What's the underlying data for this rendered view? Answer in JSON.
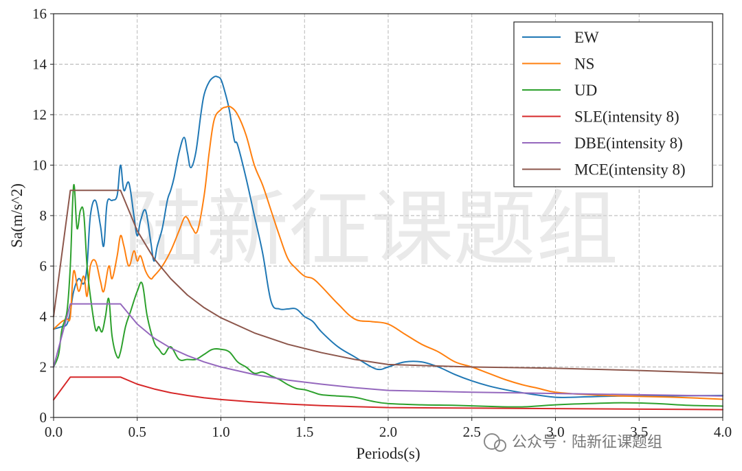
{
  "chart_data": {
    "type": "line",
    "xlabel": "Periods(s)",
    "ylabel": "Sa(m/s^2)",
    "xlim": [
      0,
      4.0
    ],
    "ylim": [
      0,
      16
    ],
    "xticks": [
      "0.0",
      "0.5",
      "1.0",
      "1.5",
      "2.0",
      "2.5",
      "3.0",
      "3.5",
      "4.0"
    ],
    "yticks": [
      "0",
      "2",
      "4",
      "6",
      "8",
      "10",
      "12",
      "14",
      "16"
    ],
    "grid": true,
    "legend_position": "top-right",
    "series": [
      {
        "name": "EW",
        "color": "#1f77b4",
        "x": [
          0.0,
          0.05,
          0.08,
          0.1,
          0.12,
          0.15,
          0.18,
          0.2,
          0.22,
          0.25,
          0.28,
          0.3,
          0.32,
          0.35,
          0.38,
          0.4,
          0.42,
          0.45,
          0.48,
          0.5,
          0.52,
          0.55,
          0.58,
          0.6,
          0.62,
          0.65,
          0.68,
          0.7,
          0.72,
          0.75,
          0.78,
          0.8,
          0.82,
          0.85,
          0.88,
          0.9,
          0.93,
          0.96,
          0.98,
          1.0,
          1.02,
          1.05,
          1.08,
          1.1,
          1.15,
          1.2,
          1.25,
          1.3,
          1.35,
          1.4,
          1.45,
          1.5,
          1.55,
          1.6,
          1.7,
          1.8,
          1.9,
          1.95,
          2.0,
          2.1,
          2.2,
          2.3,
          2.4,
          2.5,
          2.6,
          2.7,
          2.8,
          2.9,
          3.0,
          3.1,
          3.2,
          3.4,
          3.6,
          3.8,
          4.0
        ],
        "y": [
          3.5,
          3.6,
          3.7,
          4.2,
          5.0,
          5.5,
          5.3,
          6.0,
          8.0,
          8.6,
          7.6,
          6.8,
          8.5,
          8.6,
          8.8,
          10.0,
          9.0,
          9.3,
          8.0,
          7.2,
          7.8,
          8.2,
          7.0,
          6.2,
          6.8,
          7.5,
          8.6,
          9.0,
          9.5,
          10.5,
          11.1,
          10.5,
          9.9,
          10.5,
          12.0,
          12.8,
          13.3,
          13.5,
          13.5,
          13.4,
          13.0,
          12.2,
          11.0,
          10.8,
          9.5,
          8.0,
          6.5,
          4.6,
          4.3,
          4.3,
          4.3,
          4.0,
          3.8,
          3.4,
          2.8,
          2.4,
          2.0,
          1.9,
          2.0,
          2.2,
          2.2,
          2.0,
          1.7,
          1.45,
          1.25,
          1.1,
          0.98,
          0.88,
          0.8,
          0.8,
          0.82,
          0.85,
          0.85,
          0.86,
          0.87
        ]
      },
      {
        "name": "NS",
        "color": "#ff7f0e",
        "x": [
          0.0,
          0.05,
          0.08,
          0.1,
          0.12,
          0.15,
          0.18,
          0.2,
          0.22,
          0.25,
          0.28,
          0.3,
          0.33,
          0.35,
          0.38,
          0.4,
          0.42,
          0.45,
          0.48,
          0.5,
          0.52,
          0.55,
          0.58,
          0.6,
          0.65,
          0.7,
          0.75,
          0.78,
          0.8,
          0.83,
          0.86,
          0.9,
          0.93,
          0.96,
          1.0,
          1.03,
          1.06,
          1.1,
          1.15,
          1.2,
          1.25,
          1.3,
          1.35,
          1.4,
          1.45,
          1.5,
          1.55,
          1.6,
          1.7,
          1.8,
          1.9,
          2.0,
          2.1,
          2.2,
          2.3,
          2.4,
          2.5,
          2.6,
          2.7,
          2.8,
          2.9,
          3.0,
          3.2,
          3.4,
          3.6,
          3.8,
          4.0
        ],
        "y": [
          3.5,
          3.8,
          3.9,
          4.0,
          5.8,
          5.0,
          5.6,
          4.8,
          6.0,
          6.2,
          5.4,
          5.0,
          6.0,
          5.5,
          6.4,
          7.2,
          6.8,
          6.0,
          6.6,
          6.2,
          6.4,
          5.8,
          5.5,
          5.6,
          6.0,
          6.6,
          7.4,
          7.9,
          7.9,
          7.5,
          7.4,
          8.8,
          10.5,
          11.8,
          12.2,
          12.3,
          12.3,
          12.0,
          11.2,
          10.0,
          9.2,
          8.2,
          7.2,
          6.3,
          5.9,
          5.6,
          5.5,
          5.2,
          4.5,
          3.9,
          3.8,
          3.7,
          3.3,
          2.9,
          2.6,
          2.2,
          2.0,
          1.75,
          1.5,
          1.3,
          1.15,
          1.0,
          0.9,
          0.85,
          0.82,
          0.78,
          0.72
        ]
      },
      {
        "name": "UD",
        "color": "#2ca02c",
        "x": [
          0.0,
          0.03,
          0.05,
          0.08,
          0.1,
          0.12,
          0.14,
          0.16,
          0.18,
          0.2,
          0.22,
          0.25,
          0.27,
          0.29,
          0.31,
          0.33,
          0.35,
          0.38,
          0.4,
          0.43,
          0.46,
          0.5,
          0.53,
          0.56,
          0.6,
          0.63,
          0.66,
          0.7,
          0.75,
          0.8,
          0.85,
          0.9,
          0.95,
          1.0,
          1.05,
          1.1,
          1.15,
          1.2,
          1.25,
          1.3,
          1.35,
          1.4,
          1.45,
          1.5,
          1.55,
          1.6,
          1.7,
          1.8,
          1.9,
          2.0,
          2.2,
          2.4,
          2.6,
          2.8,
          3.0,
          3.2,
          3.4,
          3.6,
          3.8,
          4.0
        ],
        "y": [
          2.0,
          2.5,
          3.5,
          4.2,
          6.0,
          9.2,
          7.5,
          8.2,
          8.1,
          6.0,
          4.8,
          3.5,
          3.6,
          3.4,
          4.0,
          4.7,
          3.2,
          2.4,
          2.6,
          3.6,
          4.2,
          5.0,
          5.3,
          4.0,
          3.0,
          2.7,
          2.5,
          2.8,
          2.3,
          2.3,
          2.3,
          2.5,
          2.7,
          2.7,
          2.6,
          2.2,
          2.0,
          1.75,
          1.8,
          1.65,
          1.5,
          1.3,
          1.15,
          1.1,
          1.0,
          0.9,
          0.85,
          0.8,
          0.65,
          0.55,
          0.5,
          0.48,
          0.44,
          0.42,
          0.5,
          0.55,
          0.58,
          0.55,
          0.48,
          0.45
        ]
      },
      {
        "name": "SLE(intensity 8)",
        "color": "#d62728",
        "x": [
          0.0,
          0.1,
          0.4,
          0.5,
          0.6,
          0.7,
          0.8,
          0.9,
          1.0,
          1.2,
          1.4,
          1.6,
          1.8,
          2.0,
          2.5,
          3.0,
          3.5,
          4.0
        ],
        "y": [
          0.7,
          1.6,
          1.6,
          1.32,
          1.13,
          0.98,
          0.87,
          0.78,
          0.71,
          0.61,
          0.53,
          0.47,
          0.43,
          0.39,
          0.37,
          0.35,
          0.33,
          0.31
        ]
      },
      {
        "name": "DBE(intensity 8)",
        "color": "#9467bd",
        "x": [
          0.0,
          0.1,
          0.4,
          0.5,
          0.6,
          0.7,
          0.8,
          0.9,
          1.0,
          1.2,
          1.4,
          1.6,
          1.8,
          2.0,
          2.5,
          3.0,
          3.5,
          4.0
        ],
        "y": [
          2.0,
          4.5,
          4.5,
          3.7,
          3.15,
          2.75,
          2.45,
          2.2,
          2.0,
          1.7,
          1.48,
          1.32,
          1.18,
          1.07,
          1.0,
          0.95,
          0.9,
          0.85
        ]
      },
      {
        "name": "MCE(intensity 8)",
        "color": "#8c564b",
        "x": [
          0.0,
          0.1,
          0.4,
          0.5,
          0.6,
          0.7,
          0.8,
          0.9,
          1.0,
          1.2,
          1.4,
          1.6,
          1.8,
          2.0,
          2.5,
          3.0,
          3.5,
          4.0
        ],
        "y": [
          4.0,
          9.0,
          9.0,
          7.4,
          6.3,
          5.5,
          4.85,
          4.35,
          3.95,
          3.35,
          2.9,
          2.57,
          2.3,
          2.1,
          2.0,
          1.95,
          1.86,
          1.75
        ]
      }
    ]
  },
  "watermark": {
    "center_text": "陆新征课题组",
    "footer_text": "公众号 · 陆新征课题组"
  }
}
